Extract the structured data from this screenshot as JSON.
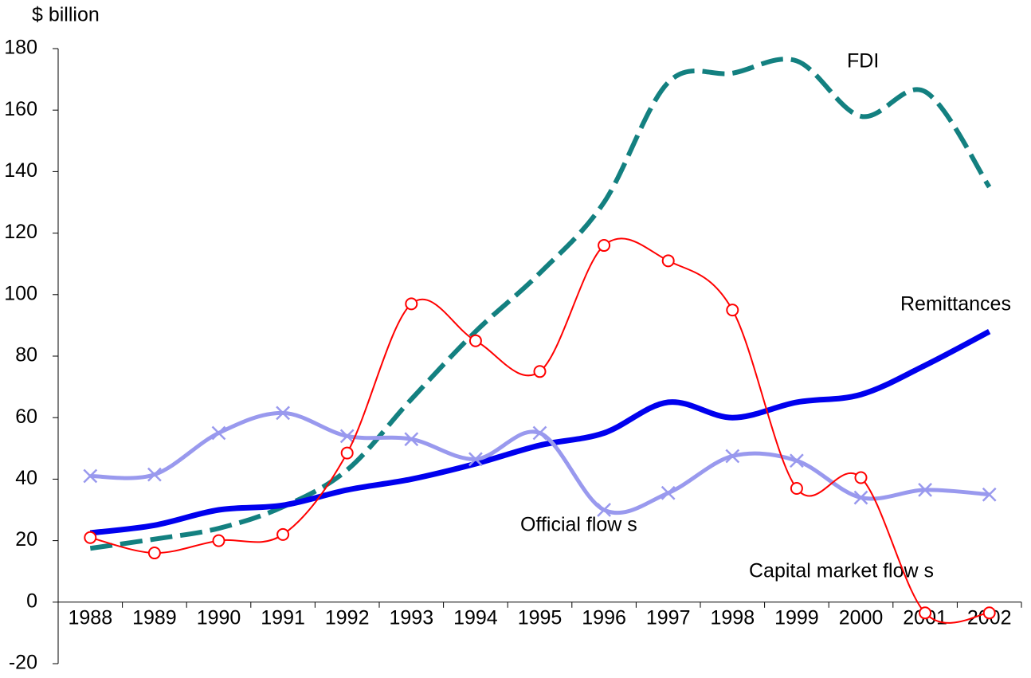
{
  "chart_data": {
    "type": "line",
    "y_label": "$ billion",
    "categories": [
      "1988",
      "1989",
      "1990",
      "1991",
      "1992",
      "1993",
      "1994",
      "1995",
      "1996",
      "1997",
      "1998",
      "1999",
      "2000",
      "2001",
      "2002"
    ],
    "series": [
      {
        "name": "FDI",
        "color": "#138080",
        "values": [
          17.5,
          20.5,
          24,
          31,
          43,
          66,
          88,
          107,
          130,
          169,
          172,
          176,
          158,
          166,
          135
        ]
      },
      {
        "name": "Remittances",
        "color": "#0000ee",
        "values": [
          22.5,
          25,
          30,
          31.5,
          36.5,
          40,
          45,
          51,
          55,
          65,
          60,
          65,
          67.5,
          77,
          88
        ]
      },
      {
        "name": "Official flow s",
        "color": "#9999ee",
        "values": [
          41,
          41.5,
          55,
          61.5,
          54,
          53,
          46.5,
          55,
          30,
          35.5,
          47.5,
          46,
          34,
          36.5,
          35
        ]
      },
      {
        "name": "Capital market flow s",
        "color": "#ff0000",
        "values": [
          21,
          16,
          20,
          22,
          48.5,
          97,
          85,
          75,
          116,
          111,
          95,
          37,
          40.5,
          -3.5,
          -3.5
        ]
      }
    ],
    "ylim": [
      -20,
      180
    ],
    "yticks": [
      -20,
      0,
      20,
      40,
      60,
      80,
      100,
      120,
      140,
      160,
      180
    ]
  }
}
